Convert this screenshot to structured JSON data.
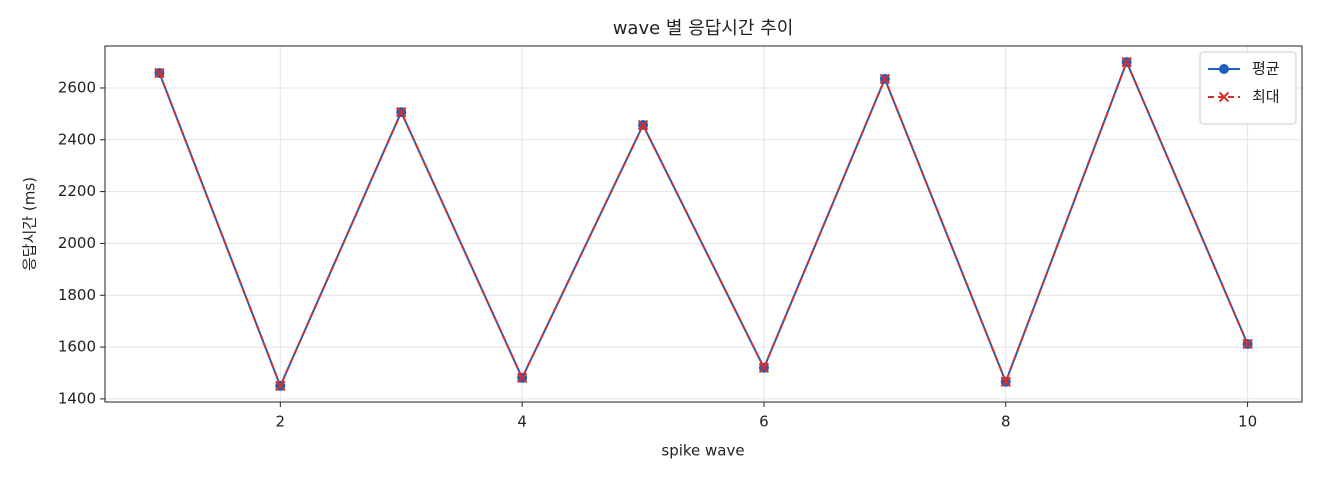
{
  "chart_data": {
    "type": "line",
    "title": "wave 별 응답시간 추이",
    "xlabel": "spike wave",
    "ylabel": "응답시간 (ms)",
    "x": [
      1,
      2,
      3,
      4,
      5,
      6,
      7,
      8,
      9,
      10
    ],
    "series": [
      {
        "name": "평균",
        "color": "#1f5fbf",
        "marker": "circle",
        "dash": false,
        "values": [
          2658,
          1450,
          2507,
          1481,
          2457,
          1520,
          2635,
          1466,
          2700,
          1612
        ]
      },
      {
        "name": "최대",
        "color": "#d03030",
        "marker": "x",
        "dash": true,
        "values": [
          2658,
          1450,
          2507,
          1481,
          2457,
          1520,
          2635,
          1466,
          2700,
          1612
        ]
      }
    ],
    "xlim": [
      0.55,
      10.45
    ],
    "ylim": [
      1388,
      2762
    ],
    "xticks": [
      2,
      4,
      6,
      8,
      10
    ],
    "yticks": [
      1400,
      1600,
      1800,
      2000,
      2200,
      2400,
      2600
    ],
    "grid": true,
    "legend": "upper right"
  }
}
